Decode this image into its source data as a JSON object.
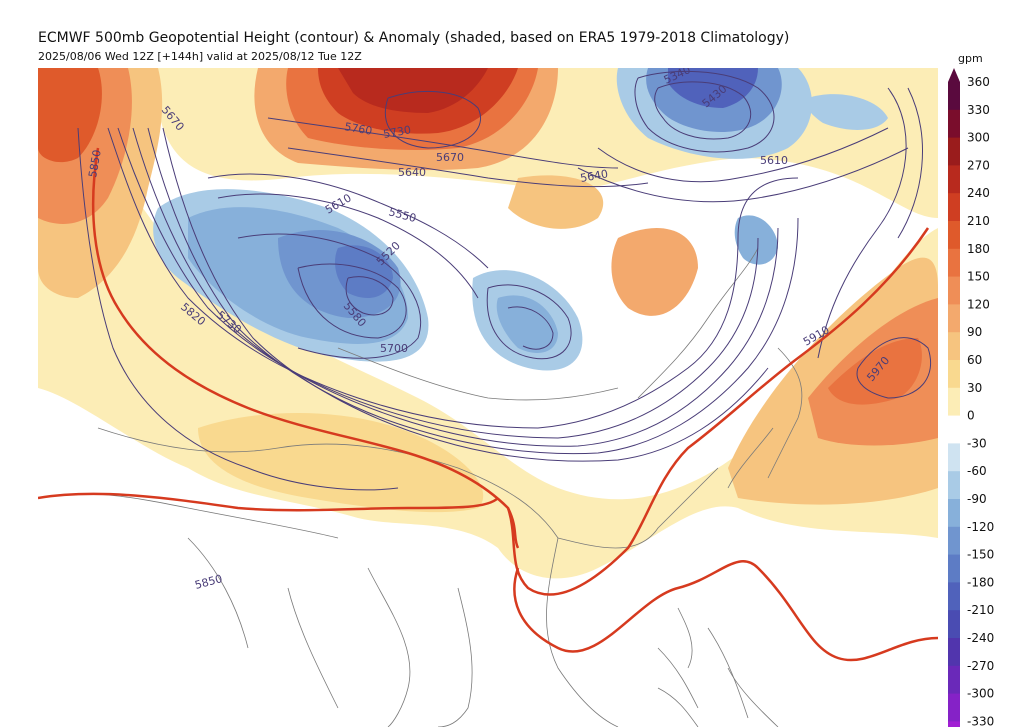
{
  "header": {
    "title": "ECMWF 500mb Geopotential Height (contour) & Anomaly (shaded, based on ERA5 1979-2018 Climatology)",
    "subtitle": "2025/08/06 Wed 12Z [+144h] valid at 2025/08/12 Tue 12Z"
  },
  "colorbar": {
    "unit": "gpm",
    "levels": [
      {
        "value": "360",
        "color": "#5a0a3e"
      },
      {
        "value": "330",
        "color": "#7a0d2c"
      },
      {
        "value": "300",
        "color": "#9a1c1c"
      },
      {
        "value": "270",
        "color": "#b82a1e"
      },
      {
        "value": "240",
        "color": "#cf3e22"
      },
      {
        "value": "210",
        "color": "#df5a2b"
      },
      {
        "value": "180",
        "color": "#e97340"
      },
      {
        "value": "150",
        "color": "#ef8e57"
      },
      {
        "value": "120",
        "color": "#f3a96d"
      },
      {
        "value": "90",
        "color": "#f6c47f"
      },
      {
        "value": "60",
        "color": "#f9d98f"
      },
      {
        "value": "30",
        "color": "#fcedb6"
      },
      {
        "value": "0",
        "color": "#ffffff"
      },
      {
        "value": "-30",
        "color": "#cfe3f1"
      },
      {
        "value": "-60",
        "color": "#a9cbe6"
      },
      {
        "value": "-90",
        "color": "#87b0da"
      },
      {
        "value": "-120",
        "color": "#7095cf"
      },
      {
        "value": "-150",
        "color": "#5d7cc5"
      },
      {
        "value": "-180",
        "color": "#5062bb"
      },
      {
        "value": "-210",
        "color": "#4a4cb2"
      },
      {
        "value": "-240",
        "color": "#5135ad"
      },
      {
        "value": "-270",
        "color": "#6a29b9"
      },
      {
        "value": "-300",
        "color": "#8522c7"
      },
      {
        "value": "-330",
        "color": "#a11fd3"
      }
    ]
  },
  "contour_labels": [
    {
      "text": "5760"
    },
    {
      "text": "5730"
    },
    {
      "text": "5670"
    },
    {
      "text": "5640"
    },
    {
      "text": "5640"
    },
    {
      "text": "5610"
    },
    {
      "text": "5550"
    },
    {
      "text": "5520"
    },
    {
      "text": "5580"
    },
    {
      "text": "5730"
    },
    {
      "text": "5820"
    },
    {
      "text": "5700"
    },
    {
      "text": "5850"
    },
    {
      "text": "5670"
    },
    {
      "text": "5340"
    },
    {
      "text": "5430"
    },
    {
      "text": "5610"
    },
    {
      "text": "5910"
    },
    {
      "text": "5970"
    },
    {
      "text": "5850"
    }
  ],
  "colors": {
    "contour": "#4a3d78",
    "ridge": "#d63a1f",
    "border": "#7a7a7a"
  }
}
